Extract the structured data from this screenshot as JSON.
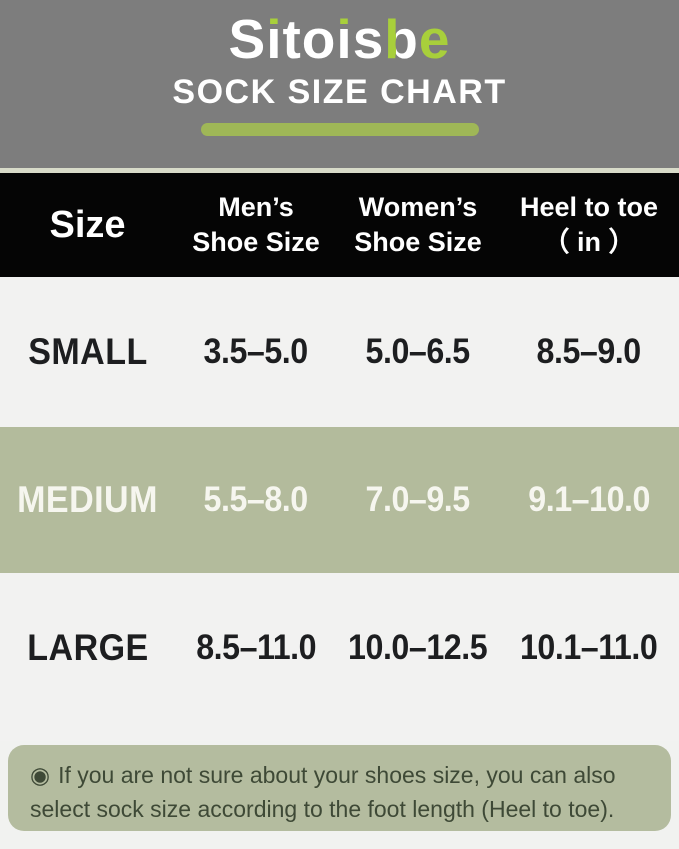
{
  "brand": {
    "logo": {
      "seg1": "S",
      "seg2": "i",
      "seg3": "to",
      "seg4": "i",
      "seg5": "s",
      "seg6": "b",
      "seg7": "e"
    },
    "logo_full_text": "Sitoisbe",
    "subtitle": "SOCK SIZE CHART"
  },
  "table": {
    "header": {
      "col1": "Size",
      "col2_line1": "Men’s",
      "col2_line2": "Shoe Size",
      "col3_line1": "Women’s",
      "col3_line2": "Shoe Size",
      "col4_line1": "Heel to toe",
      "col4_line2": "（ in ）"
    },
    "rows": [
      {
        "size": "SMALL",
        "mens": "3.5–5.0",
        "womens": "5.0–6.5",
        "heel": "8.5–9.0"
      },
      {
        "size": "MEDIUM",
        "mens": "5.5–8.0",
        "womens": "7.0–9.5",
        "heel": "9.1–10.0"
      },
      {
        "size": "LARGE",
        "mens": "8.5–11.0",
        "womens": "10.0–12.5",
        "heel": "10.1–11.0"
      }
    ]
  },
  "note": {
    "bullet": "◉",
    "text": "If you are not sure about your shoes size, you can also select sock size according to the foot length (Heel to toe)."
  },
  "colors": {
    "header_gray": "#7d7d7d",
    "logo_accent_green": "#a8cf3b",
    "underline_bar_green": "#9fb757",
    "table_header_black": "#050505",
    "row_light": "#f2f2f1",
    "row_sage_green": "#b3bb9c",
    "note_box_green": "#b4bc9f",
    "note_text": "#3e4936",
    "row_text_dark": "#1d1e20",
    "text_white": "#ffffff"
  },
  "chart_data": {
    "type": "table",
    "title": "SOCK SIZE CHART",
    "brand": "Sitoisbe",
    "columns": [
      "Size",
      "Men's Shoe Size",
      "Women's Shoe Size",
      "Heel to toe (in)"
    ],
    "rows": [
      [
        "SMALL",
        "3.5-5.0",
        "5.0-6.5",
        "8.5-9.0"
      ],
      [
        "MEDIUM",
        "5.5-8.0",
        "7.0-9.5",
        "9.1-10.0"
      ],
      [
        "LARGE",
        "8.5-11.0",
        "10.0-12.5",
        "10.1-11.0"
      ]
    ],
    "note": "If you are not sure about your shoes size, you can also select sock size according to the foot length (Heel to toe)."
  }
}
